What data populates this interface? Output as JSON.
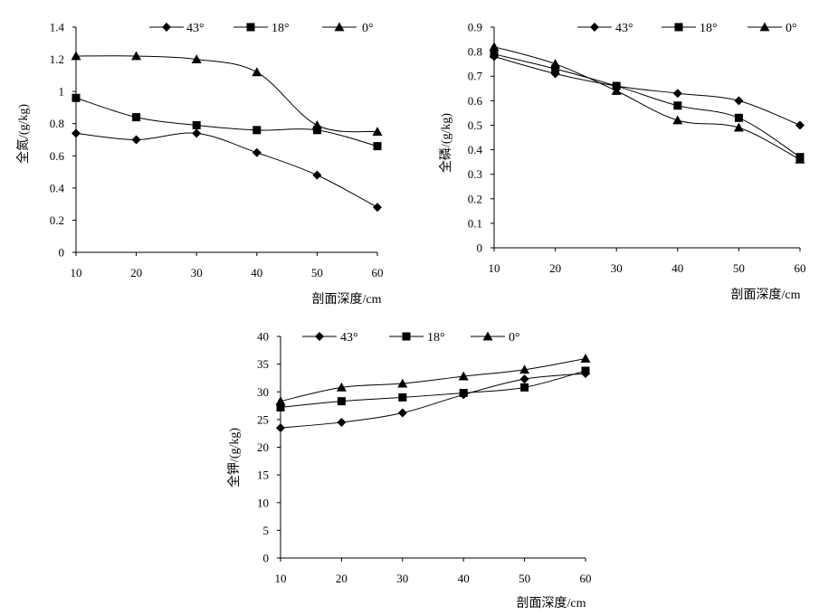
{
  "chart_data": [
    {
      "type": "line",
      "title": "",
      "xlabel": "剖面深度/cm",
      "ylabel": "全氮/(g/kg)",
      "xlim": [
        10,
        60
      ],
      "ylim": [
        0,
        1.4
      ],
      "xticks": [
        10,
        20,
        30,
        40,
        50,
        60
      ],
      "yticks": [
        0,
        0.2,
        0.4,
        0.6,
        0.8,
        1,
        1.2,
        1.4
      ],
      "ytick_labels": [
        "0",
        "0.2",
        "0.4",
        "0.6",
        "0.8",
        "1",
        "1.2",
        "1.4"
      ],
      "legend_position": "top",
      "grid": false,
      "smooth": true,
      "x": [
        10,
        20,
        30,
        40,
        50,
        60
      ],
      "series": [
        {
          "name": "43°",
          "marker": "diamond",
          "values": [
            0.74,
            0.7,
            0.74,
            0.62,
            0.48,
            0.28
          ]
        },
        {
          "name": "18°",
          "marker": "square",
          "values": [
            0.96,
            0.84,
            0.79,
            0.76,
            0.76,
            0.66
          ]
        },
        {
          "name": "0°",
          "marker": "triangle",
          "values": [
            1.22,
            1.22,
            1.2,
            1.12,
            0.79,
            0.75
          ]
        }
      ]
    },
    {
      "type": "line",
      "title": "",
      "xlabel": "剖面深度/cm",
      "ylabel": "全磷/(g/kg)",
      "xlim": [
        10,
        60
      ],
      "ylim": [
        0,
        0.9
      ],
      "xticks": [
        10,
        20,
        30,
        40,
        50,
        60
      ],
      "yticks": [
        0,
        0.1,
        0.2,
        0.3,
        0.4,
        0.5,
        0.6,
        0.7,
        0.8,
        0.9
      ],
      "ytick_labels": [
        "0",
        "0.1",
        "0.2",
        "0.3",
        "0.4",
        "0.5",
        "0.6",
        "0.7",
        "0.8",
        "0.9"
      ],
      "legend_position": "top",
      "grid": false,
      "smooth": true,
      "x": [
        10,
        20,
        30,
        40,
        50,
        60
      ],
      "series": [
        {
          "name": "43°",
          "marker": "diamond",
          "values": [
            0.78,
            0.71,
            0.66,
            0.63,
            0.6,
            0.5
          ]
        },
        {
          "name": "18°",
          "marker": "square",
          "values": [
            0.79,
            0.73,
            0.66,
            0.58,
            0.53,
            0.37
          ]
        },
        {
          "name": "0°",
          "marker": "triangle",
          "values": [
            0.82,
            0.75,
            0.64,
            0.52,
            0.49,
            0.36
          ]
        }
      ]
    },
    {
      "type": "line",
      "title": "",
      "xlabel": "剖面深度/cm",
      "ylabel": "全钾/(g/kg)",
      "xlim": [
        10,
        60
      ],
      "ylim": [
        0,
        40
      ],
      "xticks": [
        10,
        20,
        30,
        40,
        50,
        60
      ],
      "yticks": [
        0,
        5,
        10,
        15,
        20,
        25,
        30,
        35,
        40
      ],
      "ytick_labels": [
        "0",
        "5",
        "10",
        "15",
        "20",
        "25",
        "30",
        "35",
        "40"
      ],
      "legend_position": "top",
      "grid": false,
      "smooth": true,
      "x": [
        10,
        20,
        30,
        40,
        50,
        60
      ],
      "series": [
        {
          "name": "43°",
          "marker": "diamond",
          "values": [
            23.5,
            24.5,
            26.2,
            29.5,
            32.3,
            33.3
          ]
        },
        {
          "name": "18°",
          "marker": "square",
          "values": [
            27.2,
            28.3,
            29.0,
            29.8,
            30.8,
            33.8
          ]
        },
        {
          "name": "0°",
          "marker": "triangle",
          "values": [
            28.3,
            30.8,
            31.5,
            32.8,
            34.0,
            36.0
          ]
        }
      ]
    }
  ]
}
